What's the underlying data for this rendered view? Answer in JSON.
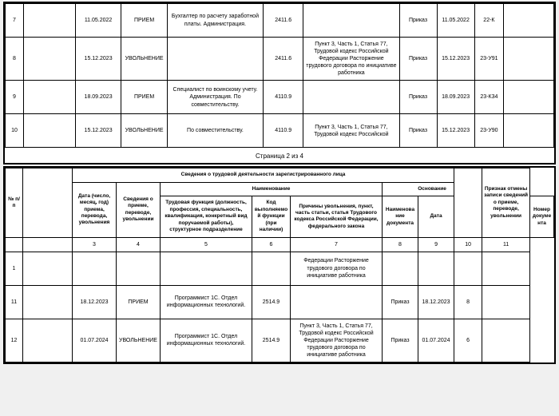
{
  "page1": {
    "rows": [
      {
        "n": "7",
        "date": "11.05.2022",
        "type": "ПРИЕМ",
        "func": "Бухгалтер по расчету заработной платы. Администрация.",
        "code": "2411.6",
        "reason": "",
        "docname": "Приказ",
        "docdate": "11.05.2022",
        "docnum": "22-К"
      },
      {
        "n": "8",
        "date": "15.12.2023",
        "type": "УВОЛЬНЕНИЕ",
        "func": "",
        "code": "2411.6",
        "reason": "Пункт 3, Часть 1, Статья 77, Трудовой кодекс Российской Федерации Расторжение трудового договора по инициативе работника",
        "docname": "Приказ",
        "docdate": "15.12.2023",
        "docnum": "23-У91"
      },
      {
        "n": "9",
        "date": "18.09.2023",
        "type": "ПРИЕМ",
        "func": "Специалист по воинскому учету. Администрация. По совместительству.",
        "code": "4110.9",
        "reason": "",
        "docname": "Приказ",
        "docdate": "18.09.2023",
        "docnum": "23-К34"
      },
      {
        "n": "10",
        "date": "15.12.2023",
        "type": "УВОЛЬНЕНИЕ",
        "func": "По совместительству.",
        "code": "4110.9",
        "reason": "Пункт 3, Часть 1, Статья 77, Трудовой кодекс Российской",
        "docname": "Приказ",
        "docdate": "15.12.2023",
        "docnum": "23-У90"
      }
    ],
    "pageLabel": "Страница 2 из 4"
  },
  "page2": {
    "headers": {
      "n": "№ п/п",
      "date": "Дата (число, месяц, год) приема, перевода, увольнения",
      "type": "Сведения о приеме, переводе, увольнении",
      "nameGroup": "Наименование",
      "func": "Трудовая функция (должность, профессия, специальность, квалификация, конкретный вид поручаемой работы), структурное подразделение",
      "code": "Код выполняемой функции (при наличии)",
      "reason": "Причины увольнения, пункт, часть статьи, статья Трудового кодекса Российской Федерации, федерального закона",
      "basisGroup": "Основание",
      "docname": "Наименование документа",
      "docdate": "Дата",
      "docnum": "Номер документа",
      "sign": "Признак отмены записи сведений о приеме, переводе, увольнении",
      "topTitle": "Сведения о трудовой деятельности зарегистрированного лица"
    },
    "numRow": {
      "c3": "3",
      "c4": "4",
      "c5": "5",
      "c6": "6",
      "c7": "7",
      "c8": "8",
      "c9": "9",
      "c10": "10",
      "c11": "11"
    },
    "rows": [
      {
        "n": "1",
        "date": "",
        "type": "",
        "func": "",
        "code": "",
        "reason": "Федерации Расторжение трудового договора по инициативе работника",
        "docname": "",
        "docdate": "",
        "docnum": "",
        "sign": ""
      },
      {
        "n": "11",
        "date": "18.12.2023",
        "type": "ПРИЕМ",
        "func": "Программист 1С. Отдел информационных технологий.",
        "code": "2514.9",
        "reason": "",
        "docname": "Приказ",
        "docdate": "18.12.2023",
        "docnum": "8",
        "sign": ""
      },
      {
        "n": "12",
        "date": "01.07.2024",
        "type": "УВОЛЬНЕНИЕ",
        "func": "Программист 1С. Отдел информационных технологий.",
        "code": "2514.9",
        "reason": "Пункт 3, Часть 1, Статья 77, Трудовой кодекс Российской Федерации Расторжение трудового договора по инициативе работника",
        "docname": "Приказ",
        "docdate": "01.07.2024",
        "docnum": "6",
        "sign": ""
      }
    ]
  }
}
